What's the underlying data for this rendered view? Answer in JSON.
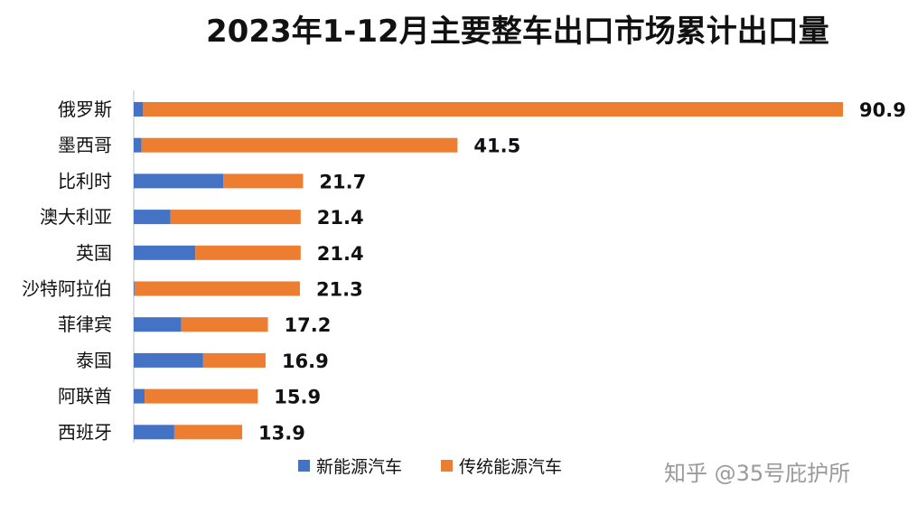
{
  "chart_data": {
    "type": "bar",
    "orientation": "horizontal",
    "stacked": true,
    "title": "2023年1-12月主要整车出口市场累计出口量",
    "categories": [
      "俄罗斯",
      "墨西哥",
      "比利时",
      "澳大利亚",
      "英国",
      "沙特阿拉伯",
      "菲律宾",
      "泰国",
      "阿联酋",
      "西班牙"
    ],
    "series": [
      {
        "name": "新能源汽车",
        "color": "#4472c4",
        "values": [
          1.2,
          1.0,
          11.5,
          4.7,
          7.9,
          0.1,
          6.1,
          8.9,
          1.4,
          5.2
        ]
      },
      {
        "name": "传统能源汽车",
        "color": "#ed7d31",
        "values": [
          89.7,
          40.5,
          10.2,
          16.7,
          13.5,
          21.2,
          11.1,
          8.0,
          14.5,
          8.7
        ]
      }
    ],
    "totals": [
      "90.9",
      "41.5",
      "21.7",
      "21.4",
      "21.4",
      "21.3",
      "17.2",
      "16.9",
      "15.9",
      "13.9"
    ],
    "xlim": [
      0,
      90.9
    ],
    "legend": "bottom"
  },
  "credit": "知乎 @35号庇护所"
}
